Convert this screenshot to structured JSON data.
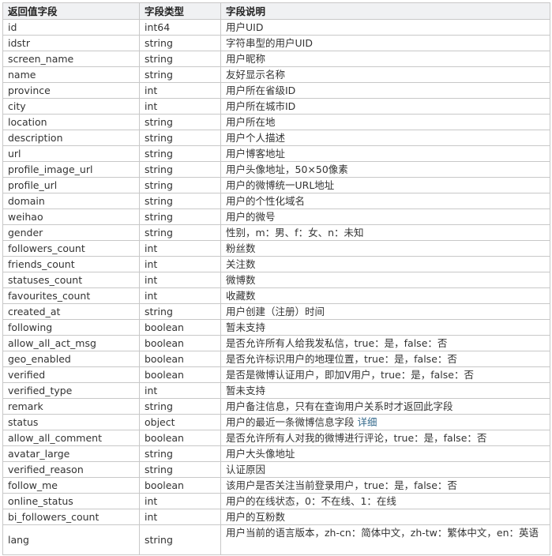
{
  "headers": [
    "返回值字段",
    "字段类型",
    "字段说明"
  ],
  "rows": [
    [
      "id",
      "int64",
      "用户UID"
    ],
    [
      "idstr",
      "string",
      "字符串型的用户UID"
    ],
    [
      "screen_name",
      "string",
      "用户昵称"
    ],
    [
      "name",
      "string",
      "友好显示名称"
    ],
    [
      "province",
      "int",
      "用户所在省级ID"
    ],
    [
      "city",
      "int",
      "用户所在城市ID"
    ],
    [
      "location",
      "string",
      "用户所在地"
    ],
    [
      "description",
      "string",
      "用户个人描述"
    ],
    [
      "url",
      "string",
      "用户博客地址"
    ],
    [
      "profile_image_url",
      "string",
      "用户头像地址，50×50像素"
    ],
    [
      "profile_url",
      "string",
      "用户的微博统一URL地址"
    ],
    [
      "domain",
      "string",
      "用户的个性化域名"
    ],
    [
      "weihao",
      "string",
      "用户的微号"
    ],
    [
      "gender",
      "string",
      "性别，m：男、f：女、n：未知"
    ],
    [
      "followers_count",
      "int",
      "粉丝数"
    ],
    [
      "friends_count",
      "int",
      "关注数"
    ],
    [
      "statuses_count",
      "int",
      "微博数"
    ],
    [
      "favourites_count",
      "int",
      "收藏数"
    ],
    [
      "created_at",
      "string",
      "用户创建（注册）时间"
    ],
    [
      "following",
      "boolean",
      "暂未支持"
    ],
    [
      "allow_all_act_msg",
      "boolean",
      "是否允许所有人给我发私信，true：是，false：否"
    ],
    [
      "geo_enabled",
      "boolean",
      "是否允许标识用户的地理位置，true：是，false：否"
    ],
    [
      "verified",
      "boolean",
      "是否是微博认证用户，即加V用户，true：是，false：否"
    ],
    [
      "verified_type",
      "int",
      "暂未支持"
    ],
    [
      "remark",
      "string",
      "用户备注信息，只有在查询用户关系时才返回此字段"
    ],
    [
      "status",
      "object",
      "用户的最近一条微博信息字段 "
    ],
    [
      "allow_all_comment",
      "boolean",
      "是否允许所有人对我的微博进行评论，true：是，false：否"
    ],
    [
      "avatar_large",
      "string",
      "用户大头像地址"
    ],
    [
      "verified_reason",
      "string",
      "认证原因"
    ],
    [
      "follow_me",
      "boolean",
      "该用户是否关注当前登录用户，true：是，false：否"
    ],
    [
      "online_status",
      "int",
      "用户的在线状态，0：不在线、1：在线"
    ],
    [
      "bi_followers_count",
      "int",
      "用户的互粉数"
    ],
    [
      "lang",
      "string",
      "用户当前的语言版本，zh-cn：简体中文，zh-tw：繁体中文，en：英语"
    ]
  ],
  "status_detail_link": "详细",
  "colors": {
    "header_bg": "#f0f1f3",
    "border": "#c8c8c8",
    "link": "#356a8c"
  }
}
